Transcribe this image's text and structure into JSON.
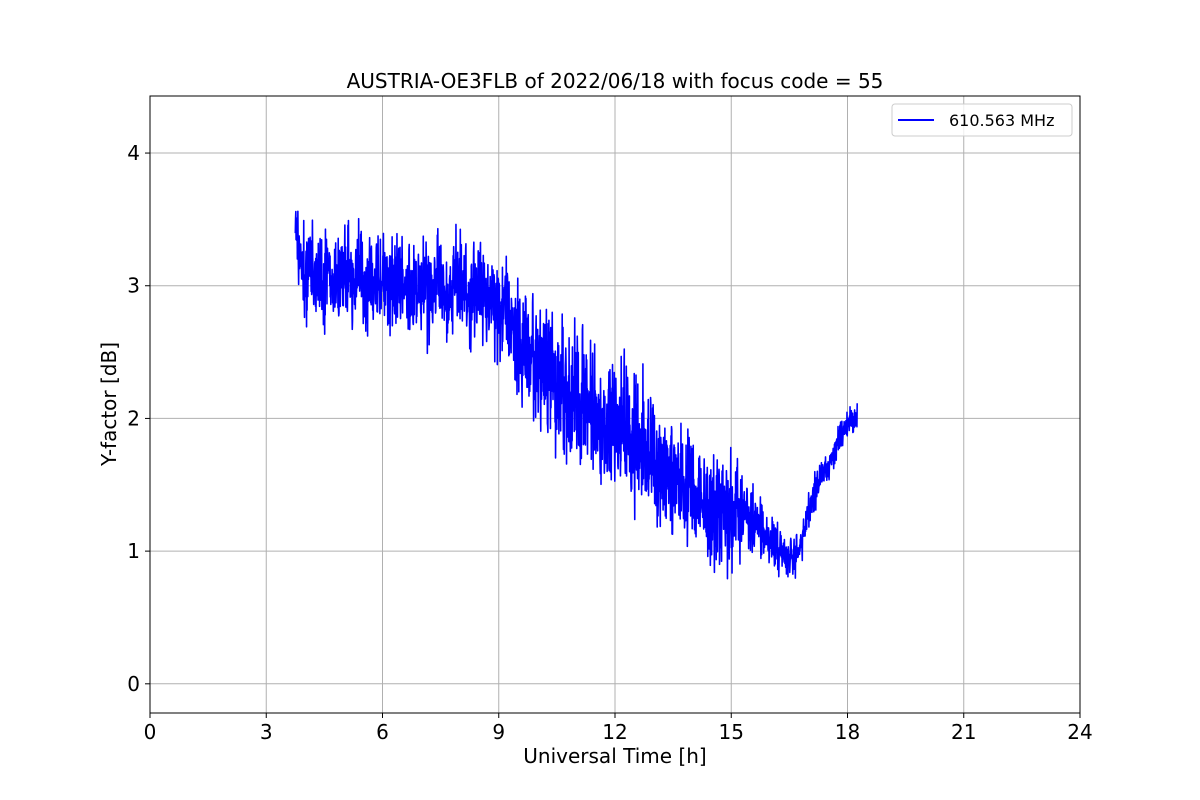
{
  "chart_data": {
    "type": "line",
    "title": "AUSTRIA-OE3FLB of 2022/06/18 with focus code = 55",
    "xlabel": "Universal Time [h]",
    "ylabel": "Y-factor [dB]",
    "xlim": [
      0,
      24
    ],
    "ylim": [
      -0.22,
      4.43
    ],
    "xticks": [
      0,
      3,
      6,
      9,
      12,
      15,
      18,
      21,
      24
    ],
    "yticks": [
      0,
      1,
      2,
      3,
      4
    ],
    "grid": true,
    "legend_position": "top-right",
    "series": [
      {
        "name": "610.563 MHz",
        "color": "#0000ff",
        "x": [
          3.75,
          3.8,
          3.9,
          4.0,
          4.1,
          4.2,
          4.3,
          4.4,
          4.5,
          4.6,
          4.7,
          4.8,
          4.9,
          5.0,
          5.2,
          5.4,
          5.6,
          5.8,
          6.0,
          6.2,
          6.4,
          6.6,
          6.8,
          7.0,
          7.2,
          7.4,
          7.6,
          7.8,
          8.0,
          8.2,
          8.4,
          8.6,
          8.8,
          9.0,
          9.2,
          9.4,
          9.6,
          9.8,
          10.0,
          10.2,
          10.4,
          10.6,
          10.8,
          11.0,
          11.2,
          11.4,
          11.6,
          11.8,
          12.0,
          12.2,
          12.4,
          12.6,
          12.8,
          13.0,
          13.2,
          13.4,
          13.6,
          13.8,
          14.0,
          14.2,
          14.4,
          14.6,
          14.8,
          15.0,
          15.2,
          15.4,
          15.6,
          15.8,
          16.0,
          16.2,
          16.4,
          16.6,
          16.8,
          17.0,
          17.2,
          17.4,
          17.6,
          17.8,
          18.0,
          18.2,
          18.25
        ],
        "y": [
          3.4,
          3.3,
          3.2,
          3.1,
          3.15,
          3.05,
          3.1,
          3.05,
          3.0,
          3.1,
          3.05,
          3.0,
          3.1,
          3.1,
          3.05,
          3.1,
          3.0,
          3.0,
          3.05,
          3.0,
          3.1,
          3.0,
          2.95,
          3.0,
          2.95,
          3.0,
          2.9,
          3.0,
          3.05,
          2.95,
          2.9,
          2.95,
          2.9,
          2.85,
          2.8,
          2.7,
          2.6,
          2.5,
          2.45,
          2.4,
          2.3,
          2.2,
          2.1,
          2.15,
          2.1,
          2.05,
          2.0,
          1.95,
          1.9,
          1.9,
          1.85,
          1.8,
          1.75,
          1.7,
          1.65,
          1.6,
          1.55,
          1.5,
          1.45,
          1.4,
          1.4,
          1.35,
          1.3,
          1.3,
          1.25,
          1.25,
          1.2,
          1.15,
          1.1,
          1.0,
          0.95,
          0.95,
          1.05,
          1.3,
          1.5,
          1.6,
          1.7,
          1.85,
          1.95,
          2.0,
          2.05
        ],
        "noise_amplitude": [
          0.45,
          0.45,
          0.45,
          0.5,
          0.5,
          0.5,
          0.5,
          0.5,
          0.5,
          0.5,
          0.5,
          0.5,
          0.5,
          0.5,
          0.5,
          0.5,
          0.5,
          0.5,
          0.5,
          0.5,
          0.5,
          0.5,
          0.5,
          0.5,
          0.5,
          0.5,
          0.5,
          0.5,
          0.5,
          0.5,
          0.55,
          0.55,
          0.6,
          0.6,
          0.6,
          0.65,
          0.7,
          0.7,
          0.75,
          0.75,
          0.75,
          0.75,
          0.75,
          0.75,
          0.7,
          0.7,
          0.7,
          0.7,
          0.7,
          0.7,
          0.7,
          0.7,
          0.65,
          0.65,
          0.6,
          0.6,
          0.55,
          0.55,
          0.55,
          0.55,
          0.6,
          0.6,
          0.6,
          0.55,
          0.5,
          0.4,
          0.35,
          0.3,
          0.25,
          0.25,
          0.25,
          0.2,
          0.2,
          0.2,
          0.2,
          0.15,
          0.15,
          0.15,
          0.15,
          0.15,
          0.15
        ]
      }
    ]
  }
}
